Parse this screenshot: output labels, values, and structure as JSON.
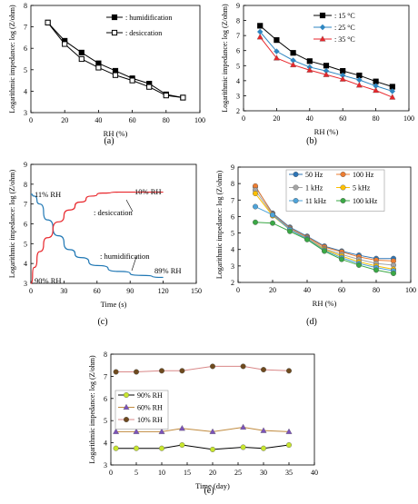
{
  "panel_labels": [
    "(a)",
    "(b)",
    "(c)",
    "(d)",
    "(e)"
  ],
  "chart_data": [
    {
      "panel": "(a)",
      "type": "line",
      "xlabel": "RH (%)",
      "ylabel": "Logarithmic impedance: log (Z/ohm)",
      "xlim": [
        0,
        100
      ],
      "ylim": [
        3,
        8
      ],
      "xticks": [
        0,
        20,
        40,
        60,
        80,
        100
      ],
      "yticks": [
        3,
        4,
        5,
        6,
        7,
        8
      ],
      "grid": false,
      "legend_position": "top-right",
      "x": [
        10,
        20,
        30,
        40,
        50,
        60,
        70,
        80,
        90
      ],
      "series": [
        {
          "name": ": humidification",
          "color": "#000000",
          "marker": "square-filled",
          "values": [
            7.2,
            6.35,
            5.8,
            5.3,
            4.95,
            4.6,
            4.35,
            3.85,
            3.7
          ]
        },
        {
          "name": ": desiccation",
          "color": "#000000",
          "marker": "square-open",
          "values": [
            7.2,
            6.2,
            5.5,
            5.1,
            4.75,
            4.5,
            4.2,
            3.8,
            3.7
          ]
        }
      ]
    },
    {
      "panel": "(b)",
      "type": "line",
      "xlabel": "RH (%)",
      "ylabel": "Logarithmic impedance: log (Z/ohm)",
      "xlim": [
        0,
        100
      ],
      "ylim": [
        2,
        9
      ],
      "xticks": [
        0,
        20,
        40,
        60,
        80,
        100
      ],
      "yticks": [
        2,
        3,
        4,
        5,
        6,
        7,
        8,
        9
      ],
      "grid": false,
      "legend_position": "top-right",
      "x": [
        10,
        20,
        30,
        40,
        50,
        60,
        70,
        80,
        90
      ],
      "series": [
        {
          "name": ": 15 °C",
          "color": "#000000",
          "marker": "square",
          "values": [
            7.65,
            6.7,
            5.85,
            5.3,
            5.0,
            4.65,
            4.35,
            3.95,
            3.6
          ]
        },
        {
          "name": ": 25 °C",
          "color": "#2e86c1",
          "marker": "diamond",
          "values": [
            7.25,
            5.95,
            5.35,
            4.9,
            4.65,
            4.35,
            4.05,
            3.65,
            3.3
          ]
        },
        {
          "name": ": 35 °C",
          "color": "#e8262b",
          "marker": "triangle",
          "values": [
            6.9,
            5.5,
            5.05,
            4.7,
            4.4,
            4.1,
            3.7,
            3.35,
            2.9
          ]
        }
      ]
    },
    {
      "panel": "(c)",
      "type": "line",
      "xlabel": "Time (s)",
      "ylabel": "Logarithmic impedance: log (Z/ohm)",
      "xlim": [
        0,
        150
      ],
      "ylim": [
        3,
        9
      ],
      "xticks": [
        0,
        30,
        60,
        90,
        120,
        150
      ],
      "yticks": [
        3,
        4,
        5,
        6,
        7,
        8,
        9
      ],
      "grid": false,
      "annotations": [
        "11% RH",
        "10% RH",
        "90% RH",
        "89% RH",
        ": desiccation",
        ": humidification"
      ],
      "series": [
        {
          "name": "humidification",
          "color": "#1f77b4",
          "x": [
            0,
            3,
            8,
            15,
            25,
            35,
            45,
            60,
            80,
            100,
            120
          ],
          "values": [
            7.5,
            7.4,
            7.0,
            6.2,
            5.4,
            4.7,
            4.3,
            3.9,
            3.6,
            3.4,
            3.3
          ]
        },
        {
          "name": "desiccation",
          "color": "#e8262b",
          "x": [
            0,
            3,
            8,
            15,
            25,
            35,
            45,
            55,
            65,
            80,
            100,
            120
          ],
          "values": [
            3.0,
            3.8,
            4.6,
            5.3,
            6.1,
            6.7,
            7.1,
            7.4,
            7.55,
            7.6,
            7.6,
            7.6
          ]
        }
      ]
    },
    {
      "panel": "(d)",
      "type": "line",
      "xlabel": "RH (%)",
      "ylabel": "Logarithmic impedance: log (Z/ohm)",
      "xlim": [
        0,
        100
      ],
      "ylim": [
        2,
        9
      ],
      "xticks": [
        0,
        20,
        40,
        60,
        80,
        100
      ],
      "yticks": [
        2,
        3,
        4,
        5,
        6,
        7,
        8,
        9
      ],
      "grid": false,
      "legend_position": "top-right",
      "x": [
        10,
        20,
        30,
        40,
        50,
        60,
        70,
        80,
        90
      ],
      "series": [
        {
          "name": "50 Hz",
          "color": "#2e75b6",
          "marker": "circle",
          "values": [
            7.8,
            6.2,
            5.35,
            4.8,
            4.2,
            3.9,
            3.65,
            3.45,
            3.45
          ]
        },
        {
          "name": "100 Hz",
          "color": "#ed7d31",
          "marker": "circle",
          "values": [
            7.85,
            6.15,
            5.3,
            4.75,
            4.15,
            3.85,
            3.55,
            3.35,
            3.3
          ]
        },
        {
          "name": "1 kHz",
          "color": "#a5a5a5",
          "marker": "circle",
          "values": [
            7.6,
            6.1,
            5.25,
            4.7,
            4.05,
            3.7,
            3.4,
            3.15,
            3.05
          ]
        },
        {
          "name": "5 kHz",
          "color": "#ffc000",
          "marker": "circle",
          "values": [
            7.4,
            6.05,
            5.2,
            4.65,
            4.0,
            3.6,
            3.25,
            3.0,
            2.8
          ]
        },
        {
          "name": "11 kHz",
          "color": "#4ea3d9",
          "marker": "circle",
          "values": [
            6.6,
            6.1,
            5.2,
            4.65,
            3.95,
            3.5,
            3.15,
            2.9,
            2.7
          ]
        },
        {
          "name": "100 kHz",
          "color": "#3aa845",
          "marker": "circle",
          "values": [
            5.65,
            5.6,
            5.1,
            4.6,
            3.9,
            3.4,
            3.05,
            2.75,
            2.55
          ]
        }
      ]
    },
    {
      "panel": "(e)",
      "type": "line",
      "xlabel": "Time (day)",
      "ylabel": "Logarithmic impedance: log (Z/ohm)",
      "xlim": [
        0,
        40
      ],
      "ylim": [
        3,
        8
      ],
      "xticks": [
        0,
        5,
        10,
        15,
        20,
        25,
        30,
        35,
        40
      ],
      "yticks": [
        3,
        4,
        5,
        6,
        7,
        8
      ],
      "grid": false,
      "legend_position": "center-left",
      "x": [
        1,
        5,
        10,
        14,
        20,
        26,
        30,
        35
      ],
      "series": [
        {
          "name": "90% RH",
          "color": "#c8e62e",
          "line_color": "#000000",
          "marker": "circle",
          "values": [
            3.75,
            3.75,
            3.75,
            3.9,
            3.7,
            3.8,
            3.75,
            3.9
          ]
        },
        {
          "name": "60% RH",
          "color": "#7b52b8",
          "line_color": "#c08a3e",
          "marker": "triangle",
          "values": [
            4.5,
            4.5,
            4.5,
            4.65,
            4.5,
            4.7,
            4.55,
            4.5
          ]
        },
        {
          "name": "10% RH",
          "color": "#6e4a1e",
          "line_color": "#d98888",
          "marker": "circle",
          "values": [
            7.2,
            7.2,
            7.25,
            7.25,
            7.45,
            7.45,
            7.3,
            7.25
          ]
        }
      ]
    }
  ]
}
